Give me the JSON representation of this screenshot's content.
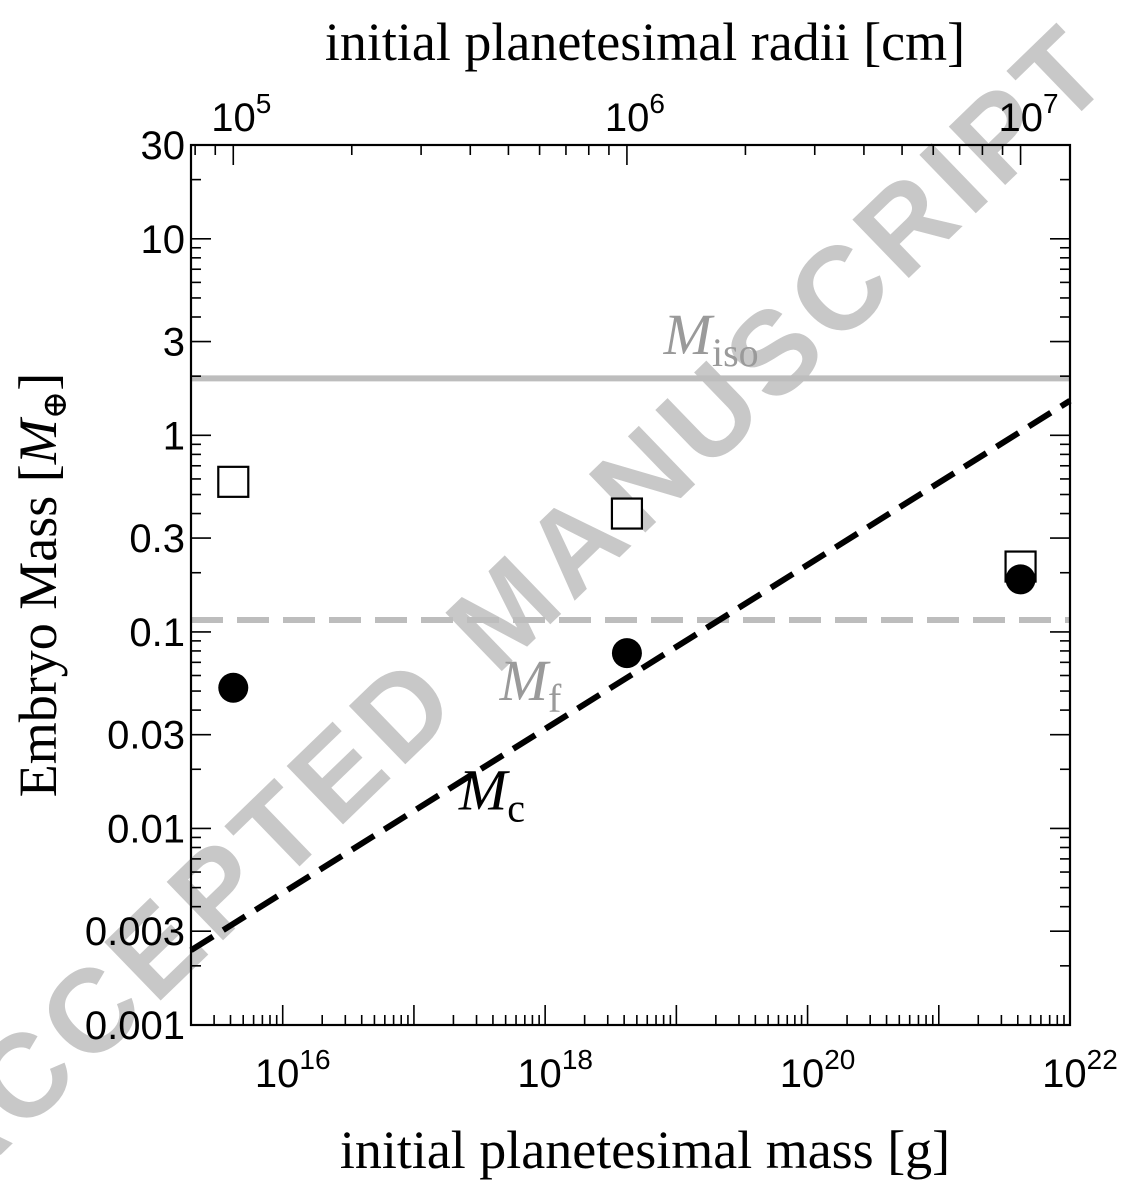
{
  "chart_data": {
    "type": "scatter",
    "xlabel": "initial planetesimal mass [g]",
    "x2label": "initial planetesimal radii [cm]",
    "ylabel_main": "Embryo Mass [",
    "ylabel_sym": "M",
    "ylabel_sub": "⊕",
    "ylabel_close": "]",
    "xscale": "log",
    "yscale": "log",
    "xlim": [
      2000000000000000.0,
      1e+22
    ],
    "ylim": [
      0.001,
      30
    ],
    "x_ticks": [
      {
        "value": 1e+16,
        "base": "10",
        "exp": "16"
      },
      {
        "value": 1e+18,
        "base": "10",
        "exp": "18"
      },
      {
        "value": 1e+20,
        "base": "10",
        "exp": "20"
      },
      {
        "value": 1e+22,
        "base": "10",
        "exp": "22"
      }
    ],
    "y_ticks": [
      {
        "value": 30,
        "label": "30"
      },
      {
        "value": 10,
        "label": "10"
      },
      {
        "value": 3,
        "label": "3"
      },
      {
        "value": 1,
        "label": "1"
      },
      {
        "value": 0.3,
        "label": "0.3"
      },
      {
        "value": 0.1,
        "label": "0.1"
      },
      {
        "value": 0.03,
        "label": "0.03"
      },
      {
        "value": 0.01,
        "label": "0.01"
      },
      {
        "value": 0.003,
        "label": "0.003"
      },
      {
        "value": 0.001,
        "label": "0.001"
      }
    ],
    "x2_ticks": [
      {
        "mass": 4200000000000000.0,
        "base": "10",
        "exp": "5"
      },
      {
        "mass": 4.2e+18,
        "base": "10",
        "exp": "6"
      },
      {
        "mass": 4.2e+21,
        "base": "10",
        "exp": "7"
      }
    ],
    "series": [
      {
        "marker": "open-square",
        "color": "#000000",
        "x": [
          4200000000000000.0,
          4.2e+18,
          4.2e+21
        ],
        "y": [
          0.58,
          0.4,
          0.215
        ]
      },
      {
        "marker": "filled-circle",
        "color": "#000000",
        "x": [
          4200000000000000.0,
          4.2e+18,
          4.2e+21
        ],
        "y": [
          0.052,
          0.078,
          0.185
        ]
      }
    ],
    "lines": [
      {
        "kind": "horizontal",
        "style": "solid",
        "color": "#bdbdbd",
        "y": 1.95,
        "label_sym": "M",
        "label_sub": "iso",
        "label_at": [
          8e+18,
          2.6
        ]
      },
      {
        "kind": "horizontal",
        "style": "dashed",
        "color": "#bdbdbd",
        "y": 0.115,
        "label_sym": "M",
        "label_sub": "f",
        "label_at": [
          4.5e+17,
          0.045
        ]
      },
      {
        "kind": "power-law",
        "style": "dashed",
        "color": "#000000",
        "x": [
          2000000000000000.0,
          1e+22
        ],
        "y": [
          0.0024,
          1.5
        ],
        "label_sym": "M",
        "label_sub": "c",
        "label_at": [
          2.2e+17,
          0.0125
        ]
      }
    ]
  },
  "watermark": {
    "text": "ACCEPTED MANUSCRIPT",
    "color": "#c8c8c8"
  }
}
